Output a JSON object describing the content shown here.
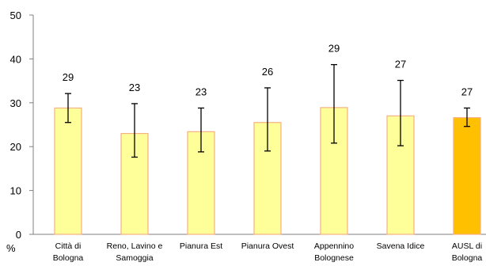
{
  "chart_data": {
    "type": "bar",
    "ylabel": "%",
    "ylim": [
      0,
      50
    ],
    "yticks": [
      0,
      10,
      20,
      30,
      40,
      50
    ],
    "grid": false,
    "categories": [
      [
        "Città di",
        "Bologna"
      ],
      [
        "Reno, Lavino e",
        "Samoggia"
      ],
      [
        "Pianura Est"
      ],
      [
        "Pianura Ovest"
      ],
      [
        "Appennino",
        "Bolognese"
      ],
      [
        "Savena Idice"
      ],
      [
        "AUSL di",
        "Bologna"
      ]
    ],
    "values": [
      28.8,
      23.0,
      23.4,
      25.5,
      28.9,
      27.0,
      26.6
    ],
    "data_labels": [
      "29",
      "23",
      "23",
      "26",
      "29",
      "27",
      "27"
    ],
    "ci_low": [
      25.5,
      17.6,
      18.8,
      19.0,
      20.8,
      20.2,
      24.6
    ],
    "ci_high": [
      32.1,
      29.8,
      28.8,
      33.4,
      38.7,
      35.1,
      28.8
    ],
    "colors": {
      "bar_fill": "#FFFF99",
      "bar_stroke": "#F4B183",
      "highlight_fill": "#FFC000",
      "highlight_stroke": "#F4B183",
      "highlight_index": 6,
      "axis": "#808080",
      "error_bar": "#000000"
    }
  }
}
